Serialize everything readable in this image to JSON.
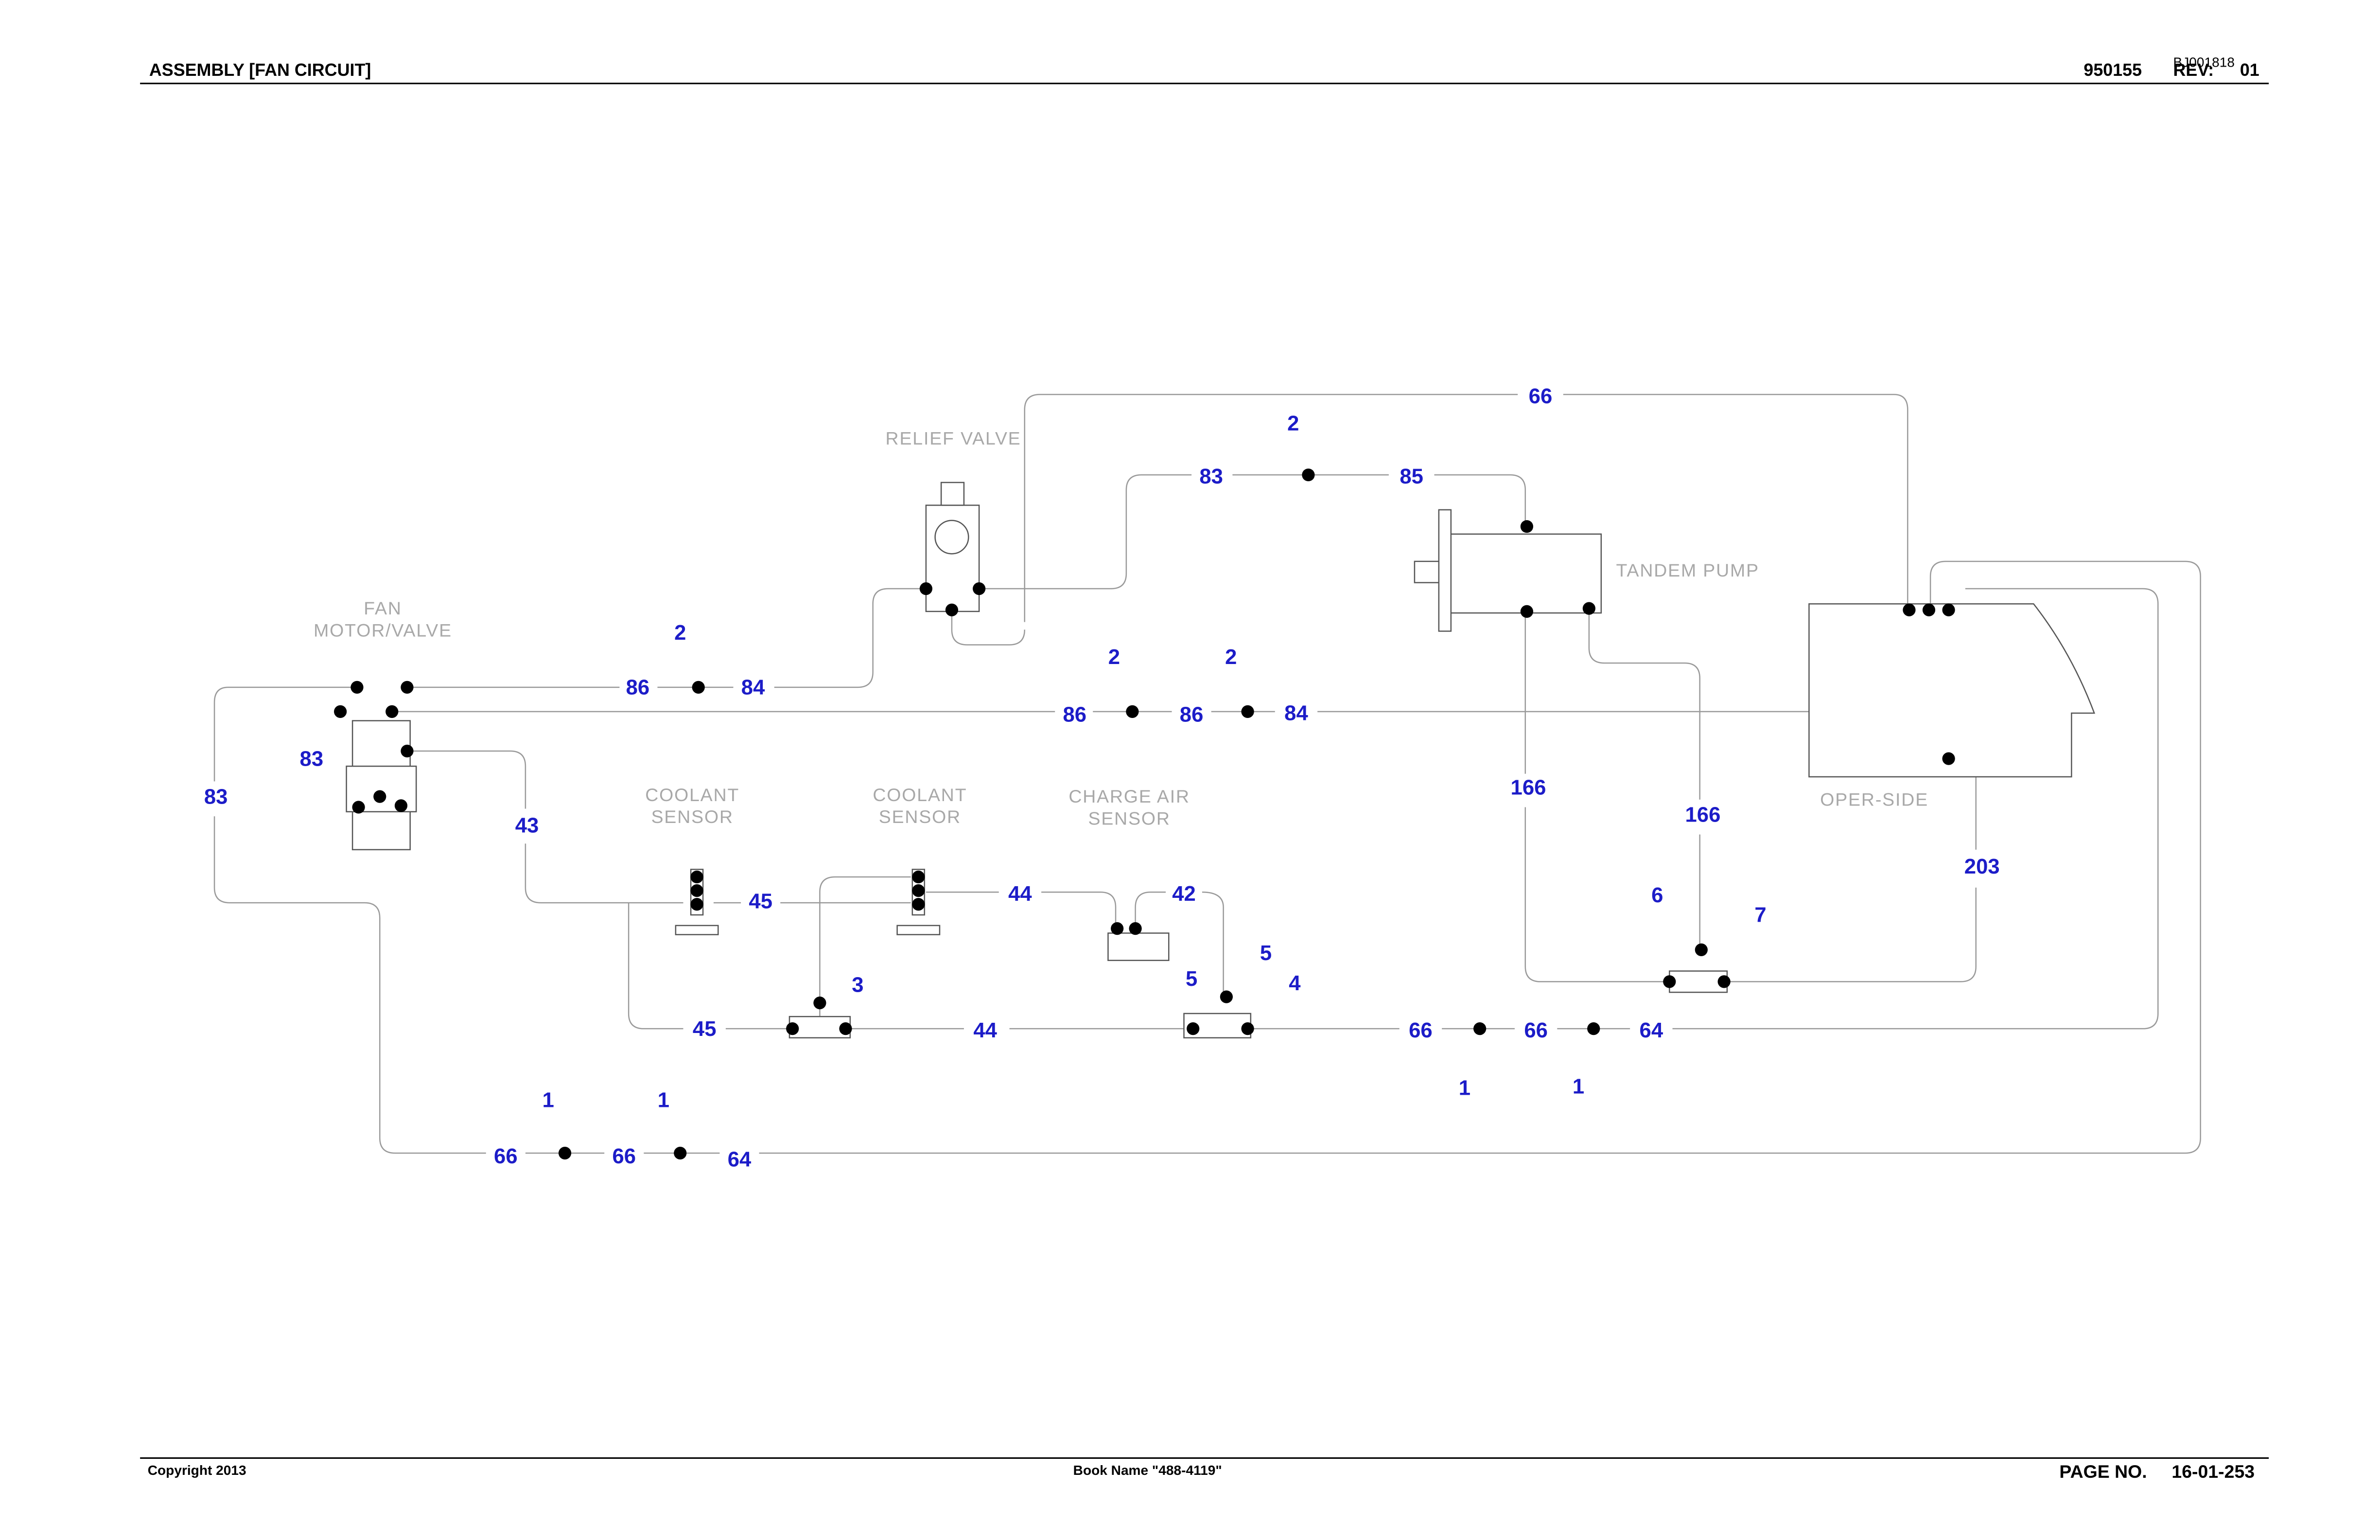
{
  "header": {
    "title": "ASSEMBLY [FAN CIRCUIT]",
    "part_number": "950155",
    "revision_label": "REV:",
    "revision": "01",
    "drawing_id": "BJ001818"
  },
  "components": [
    {
      "lines": [
        "RELIEF VALVE"
      ]
    },
    {
      "lines": [
        "FAN",
        "MOTOR/VALVE"
      ]
    },
    {
      "lines": [
        "COOLANT",
        "SENSOR"
      ]
    },
    {
      "lines": [
        "COOLANT",
        "SENSOR"
      ]
    },
    {
      "lines": [
        "CHARGE AIR",
        "SENSOR"
      ]
    },
    {
      "lines": [
        "TANDEM PUMP"
      ]
    },
    {
      "lines": [
        "OPER-SIDE"
      ]
    }
  ],
  "callouts": [
    "66",
    "2",
    "83",
    "85",
    "2",
    "86",
    "84",
    "2",
    "2",
    "86",
    "86",
    "84",
    "83",
    "83",
    "43",
    "166",
    "166",
    "203",
    "45",
    "44",
    "42",
    "6",
    "7",
    "3",
    "5",
    "5",
    "4",
    "45",
    "44",
    "66",
    "66",
    "64",
    "1",
    "1",
    "1",
    "1",
    "66",
    "66",
    "64"
  ],
  "footer": {
    "copyright": "Copyright 2013",
    "book_name": "Book Name \"488-4119\"",
    "page_label": "PAGE NO.",
    "page_number": "16-01-253"
  }
}
